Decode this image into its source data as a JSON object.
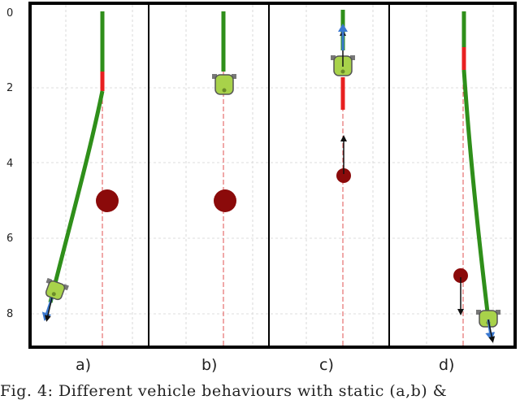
{
  "figure": {
    "y_ticks": [
      "0",
      "2",
      "4",
      "6",
      "8"
    ],
    "panels": [
      {
        "label": "a)"
      },
      {
        "label": "b)"
      },
      {
        "label": "c)"
      },
      {
        "label": "d)"
      }
    ],
    "caption": "Fig. 4: Different vehicle behaviours with static (a,b) &"
  },
  "chart_data": {
    "type": "diagram",
    "y_axis": {
      "ticks": [
        0,
        2,
        4,
        6,
        8
      ],
      "inverted": true,
      "range": [
        0,
        8.7
      ]
    },
    "panels": [
      {
        "label": "a)",
        "obstacle": {
          "y": 5.0,
          "kind": "static"
        },
        "vehicle_end_y": 7.6
      },
      {
        "label": "b)",
        "obstacle": {
          "y": 5.0,
          "kind": "static"
        },
        "vehicle_end_y": 2.0
      },
      {
        "label": "c)",
        "obstacle": {
          "y": 4.3,
          "kind": "dynamic"
        },
        "vehicle_end_y": 1.6
      },
      {
        "label": "d)",
        "obstacle": {
          "y": 7.0,
          "kind": "dynamic"
        },
        "vehicle_end_y": 8.2
      }
    ],
    "colors": {
      "path": "#2f8f1a",
      "path_alert": "#e82020",
      "obstacle": "#8b0a0a",
      "vehicle": "#a8d24a",
      "reference": "#e05050"
    }
  }
}
